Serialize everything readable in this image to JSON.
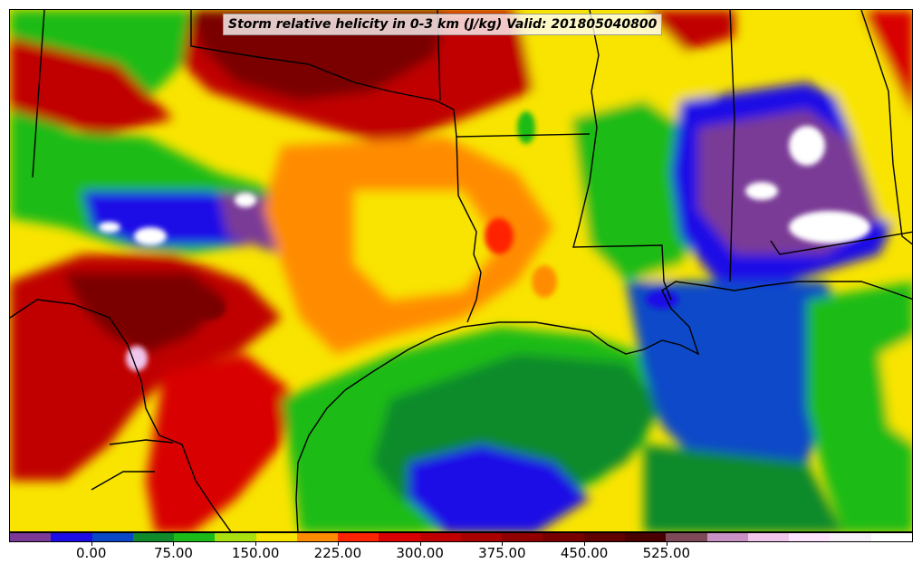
{
  "title": "Storm relative helicity in 0-3 km (J/kg) Valid: 201805040800",
  "colorbar": {
    "colors": [
      "#7a3a96",
      "#1e0ee6",
      "#0a48c8",
      "#118a2c",
      "#1bbb18",
      "#a8e010",
      "#f8e400",
      "#ff8c00",
      "#ff2400",
      "#d80000",
      "#c00000",
      "#a80000",
      "#900000",
      "#780000",
      "#600000",
      "#480000",
      "#7e4a5a",
      "#c890c4",
      "#f0c6ec",
      "#ffe4ff",
      "#f8f0f8",
      "#ffffff"
    ],
    "tick_labels": [
      "0.00",
      "75.00",
      "150.00",
      "225.00",
      "300.00",
      "375.00",
      "450.00",
      "525.00"
    ]
  },
  "map": {
    "land_colors": [
      "#1bbb18",
      "#118a2c",
      "#a8e010",
      "#f8e400",
      "#ff8c00",
      "#ff2400",
      "#d80000",
      "#8b0000",
      "#1e0ee6",
      "#7a3a96",
      "#ffffff"
    ],
    "ocean_color": "#118a2c"
  }
}
